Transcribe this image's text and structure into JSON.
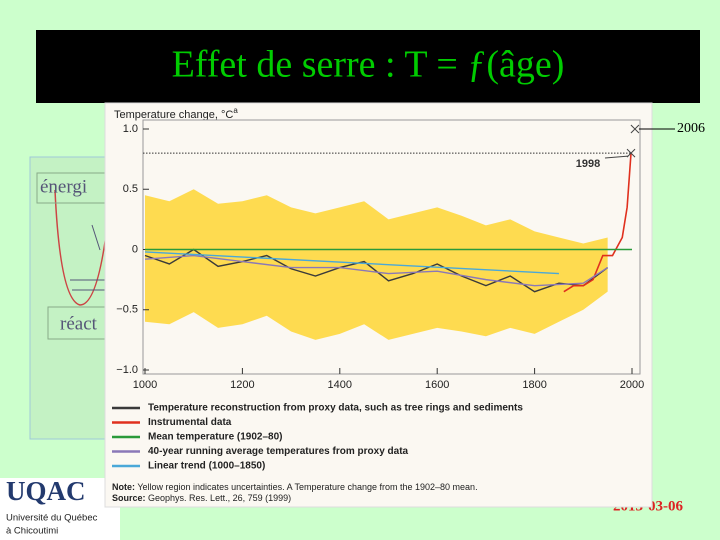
{
  "slide": {
    "title": "Effet de serre : T  =  ƒ(âge)",
    "side_labels": [
      "énergi",
      "réact"
    ],
    "date": "2013-03-06",
    "logo": {
      "name": "UQAC",
      "lines": [
        "Université du Québec",
        "à Chicoutimi"
      ]
    }
  },
  "chart_data": {
    "type": "line",
    "title": "Temperature change, °C",
    "title_mark": "a",
    "xlim": [
      1000,
      2000
    ],
    "xticks": [
      1000,
      1200,
      1400,
      1600,
      1800,
      2000
    ],
    "ylim": [
      -1.0,
      1.0
    ],
    "yticks": [
      {
        "value": -1.0,
        "label": "−1.0"
      },
      {
        "value": -0.5,
        "label": "−0.5"
      },
      0,
      {
        "value": 0.5,
        "label": "0.5"
      },
      {
        "value": 1.0,
        "label": "1.0"
      }
    ],
    "band": {
      "color": "#ffd21a",
      "x": [
        1000,
        1050,
        1100,
        1150,
        1200,
        1250,
        1300,
        1350,
        1400,
        1450,
        1500,
        1550,
        1600,
        1650,
        1700,
        1750,
        1800,
        1850,
        1900,
        1950
      ],
      "lower": [
        -0.6,
        -0.62,
        -0.52,
        -0.65,
        -0.62,
        -0.55,
        -0.68,
        -0.75,
        -0.7,
        -0.62,
        -0.75,
        -0.7,
        -0.65,
        -0.68,
        -0.72,
        -0.65,
        -0.7,
        -0.6,
        -0.5,
        -0.35
      ],
      "upper": [
        0.45,
        0.4,
        0.5,
        0.38,
        0.4,
        0.45,
        0.35,
        0.3,
        0.35,
        0.4,
        0.25,
        0.3,
        0.35,
        0.28,
        0.2,
        0.25,
        0.15,
        0.1,
        0.05,
        0.1
      ]
    },
    "series": [
      {
        "name": "Temperature reconstruction from proxy data, such as tree rings and sediments",
        "color": "#3a3a3a",
        "x": [
          1000,
          1050,
          1100,
          1150,
          1200,
          1250,
          1300,
          1350,
          1400,
          1450,
          1500,
          1550,
          1600,
          1650,
          1700,
          1750,
          1800,
          1850,
          1900,
          1950
        ],
        "values": [
          -0.05,
          -0.12,
          0.0,
          -0.14,
          -0.1,
          -0.05,
          -0.16,
          -0.22,
          -0.15,
          -0.1,
          -0.26,
          -0.2,
          -0.12,
          -0.22,
          -0.3,
          -0.22,
          -0.35,
          -0.28,
          -0.3,
          -0.15
        ]
      },
      {
        "name": "Instrumental data",
        "color": "#e0301e",
        "x": [
          1860,
          1880,
          1900,
          1920,
          1940,
          1960,
          1980,
          1990,
          1998
        ],
        "values": [
          -0.35,
          -0.3,
          -0.3,
          -0.25,
          -0.05,
          -0.05,
          0.1,
          0.35,
          0.8
        ]
      },
      {
        "name": "Mean temperature (1902–80)",
        "color": "#2a9a3a",
        "x": [
          1000,
          2000
        ],
        "values": [
          0.0,
          0.0
        ]
      },
      {
        "name": "40-year running average temperatures from proxy data",
        "color": "#8a78b8",
        "x": [
          1000,
          1100,
          1200,
          1300,
          1400,
          1500,
          1600,
          1700,
          1800,
          1900,
          1950
        ],
        "values": [
          -0.08,
          -0.05,
          -0.1,
          -0.15,
          -0.15,
          -0.2,
          -0.18,
          -0.25,
          -0.3,
          -0.28,
          -0.15
        ]
      },
      {
        "name": "Linear trend (1000–1850)",
        "color": "#4aa8d8",
        "x": [
          1000,
          1850
        ],
        "values": [
          -0.02,
          -0.2
        ]
      }
    ],
    "annotations": [
      {
        "text": "1998",
        "x": 1998,
        "y": 0.8
      },
      {
        "text": "2006",
        "x": 2006,
        "y": 1.0
      }
    ],
    "note_label": "Note:",
    "note": "Yellow region indicates uncertainties. A Temperature change from the 1902–80 mean.",
    "source_label": "Source:",
    "source": "Geophys. Res. Lett., 26, 759 (1999)"
  }
}
